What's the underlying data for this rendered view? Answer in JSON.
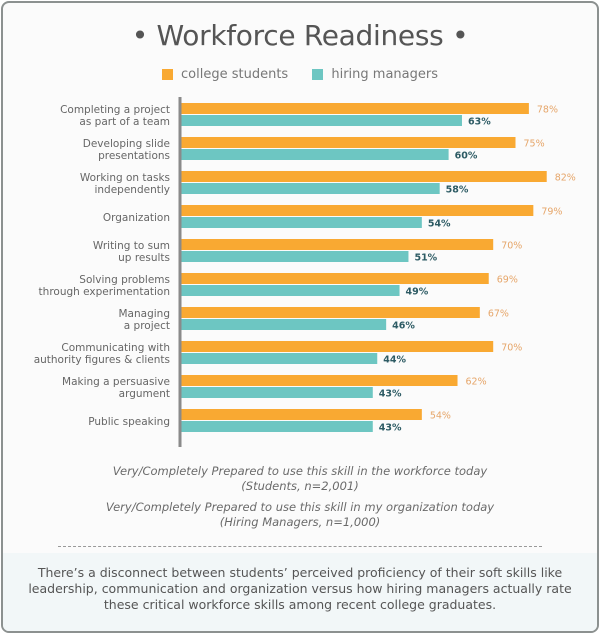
{
  "chart_data": {
    "type": "bar",
    "orientation": "horizontal",
    "title": "Workforce Readiness",
    "title_bullet": "•",
    "categories": [
      [
        "Completing a project",
        "as part of a team"
      ],
      [
        "Developing slide",
        "presentations"
      ],
      [
        "Working on tasks",
        "independently"
      ],
      [
        "Organization"
      ],
      [
        "Writing to sum",
        "up results"
      ],
      [
        "Solving problems",
        "through experimentation"
      ],
      [
        "Managing",
        "a project"
      ],
      [
        "Communicating with",
        "authority figures & clients"
      ],
      [
        "Making a persuasive",
        "argument"
      ],
      [
        "Public speaking"
      ]
    ],
    "series": [
      {
        "name": "college students",
        "color": "#f9a932",
        "label_color": "#e6a66a",
        "values": [
          78,
          75,
          82,
          79,
          70,
          69,
          67,
          70,
          62,
          54
        ]
      },
      {
        "name": "hiring managers",
        "color": "#6dc6c2",
        "label_color": "#2d5b64",
        "values": [
          63,
          60,
          58,
          54,
          51,
          49,
          46,
          44,
          43,
          43
        ]
      }
    ],
    "value_suffix": "%",
    "xlim": [
      0,
      100
    ],
    "legend_position": "top-center",
    "grid": false
  },
  "notes": {
    "students_line1": "Very/Completely Prepared to use this skill in the workforce today",
    "students_line2": "(Students, n=2,001)",
    "managers_line1": "Very/Completely Prepared to use this skill in my organization today",
    "managers_line2": "(Hiring Managers, n=1,000)"
  },
  "summary": "There’s a disconnect between students’ perceived proficiency of their soft skills like leadership, communication and organization versus how hiring managers actually rate these critical workforce skills among recent college graduates."
}
